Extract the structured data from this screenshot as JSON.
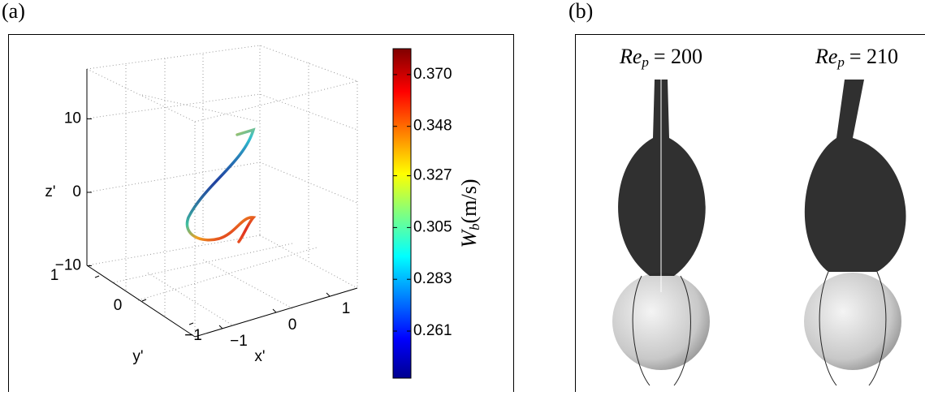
{
  "panel_a": {
    "label": "(a)",
    "z_axis": {
      "label": "z'",
      "ticks": [
        {
          "value": 10,
          "label": "10"
        },
        {
          "value": 0,
          "label": "0"
        },
        {
          "value": -10,
          "label": "−10"
        }
      ]
    },
    "y_axis": {
      "label": "y'",
      "ticks": [
        {
          "value": 1,
          "label": "1"
        },
        {
          "value": 0,
          "label": "0"
        },
        {
          "value": -1,
          "label": "−1"
        }
      ]
    },
    "x_axis": {
      "label": "x'",
      "ticks": [
        {
          "value": -1,
          "label": "−1"
        },
        {
          "value": 0,
          "label": "0"
        },
        {
          "value": 1,
          "label": "1"
        }
      ]
    },
    "colorbar": {
      "symbol": "W",
      "subscript": "b",
      "unit": "(m/s)",
      "clim": [
        0.241,
        0.381
      ],
      "ticks": [
        {
          "value": 0.37,
          "label": "0.370"
        },
        {
          "value": 0.348,
          "label": "0.348"
        },
        {
          "value": 0.327,
          "label": "0.327"
        },
        {
          "value": 0.305,
          "label": "0.305"
        },
        {
          "value": 0.283,
          "label": "0.283"
        },
        {
          "value": 0.261,
          "label": "0.261"
        }
      ]
    }
  },
  "panel_b": {
    "label": "(b)",
    "cases": [
      {
        "symbol": "Re",
        "subscript": "p",
        "equals": "= 200"
      },
      {
        "symbol": "Re",
        "subscript": "p",
        "equals": "= 210"
      }
    ]
  }
}
